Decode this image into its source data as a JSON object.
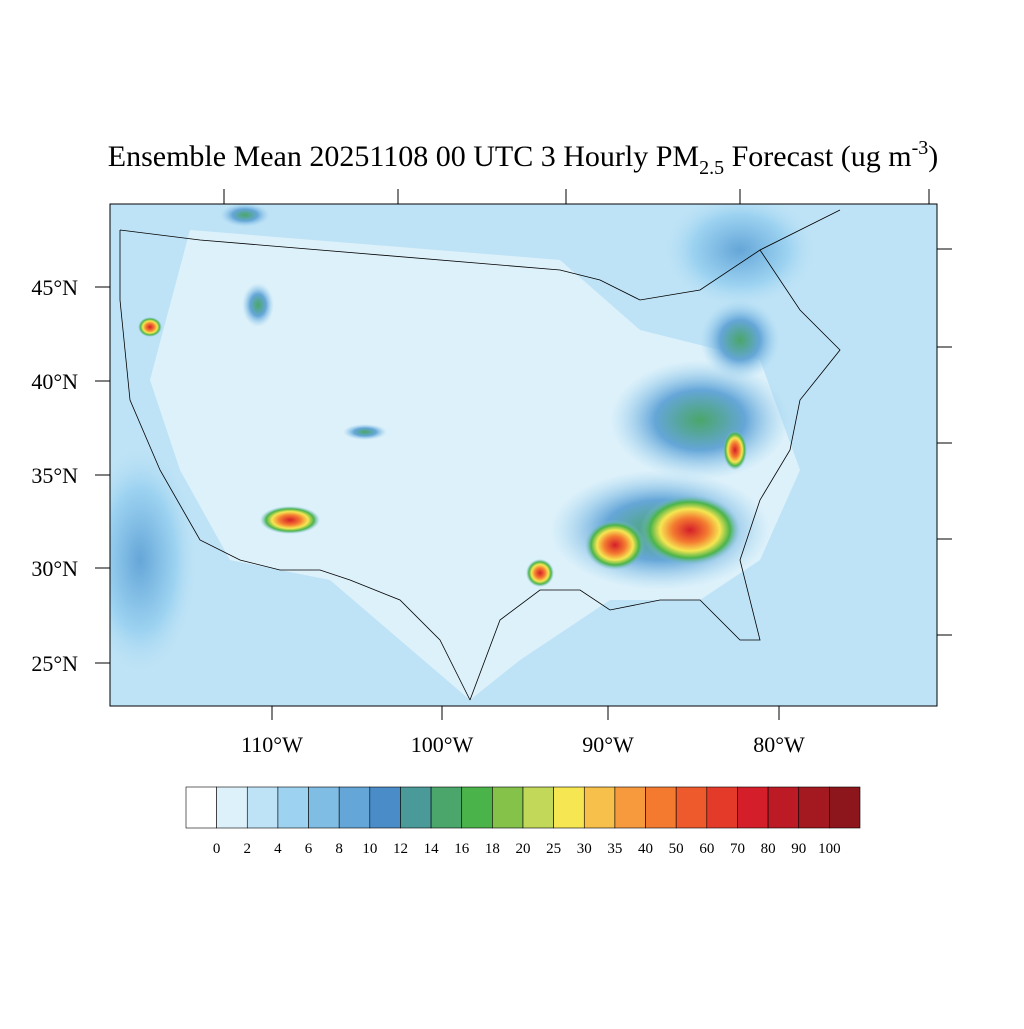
{
  "title": {
    "main": "Ensemble Mean 20251108 00 UTC 3 Hourly PM",
    "sub": "2.5",
    "after": " Forecast (ug m",
    "sup": "-3",
    "end": ")"
  },
  "lat_labels": [
    "45°N",
    "40°N",
    "35°N",
    "30°N",
    "25°N"
  ],
  "lon_labels": [
    "110°W",
    "100°W",
    "90°W",
    "80°W"
  ],
  "colorbar": {
    "labels": [
      "0",
      "2",
      "4",
      "6",
      "8",
      "10",
      "12",
      "14",
      "16",
      "18",
      "20",
      "25",
      "30",
      "35",
      "40",
      "50",
      "60",
      "70",
      "80",
      "90",
      "100"
    ],
    "colors": [
      "#ffffff",
      "#ddf1fa",
      "#bfe3f6",
      "#9dd3f1",
      "#7fbde5",
      "#65a6d8",
      "#4a8cc8",
      "#4a9a9a",
      "#4aa66a",
      "#4ab44a",
      "#84c24a",
      "#c2d858",
      "#f6e652",
      "#f7c04a",
      "#f79a3e",
      "#f47a30",
      "#ee5a2c",
      "#e43a2a",
      "#d41e2a",
      "#bc1a24",
      "#a41820",
      "#8c161c"
    ]
  }
}
